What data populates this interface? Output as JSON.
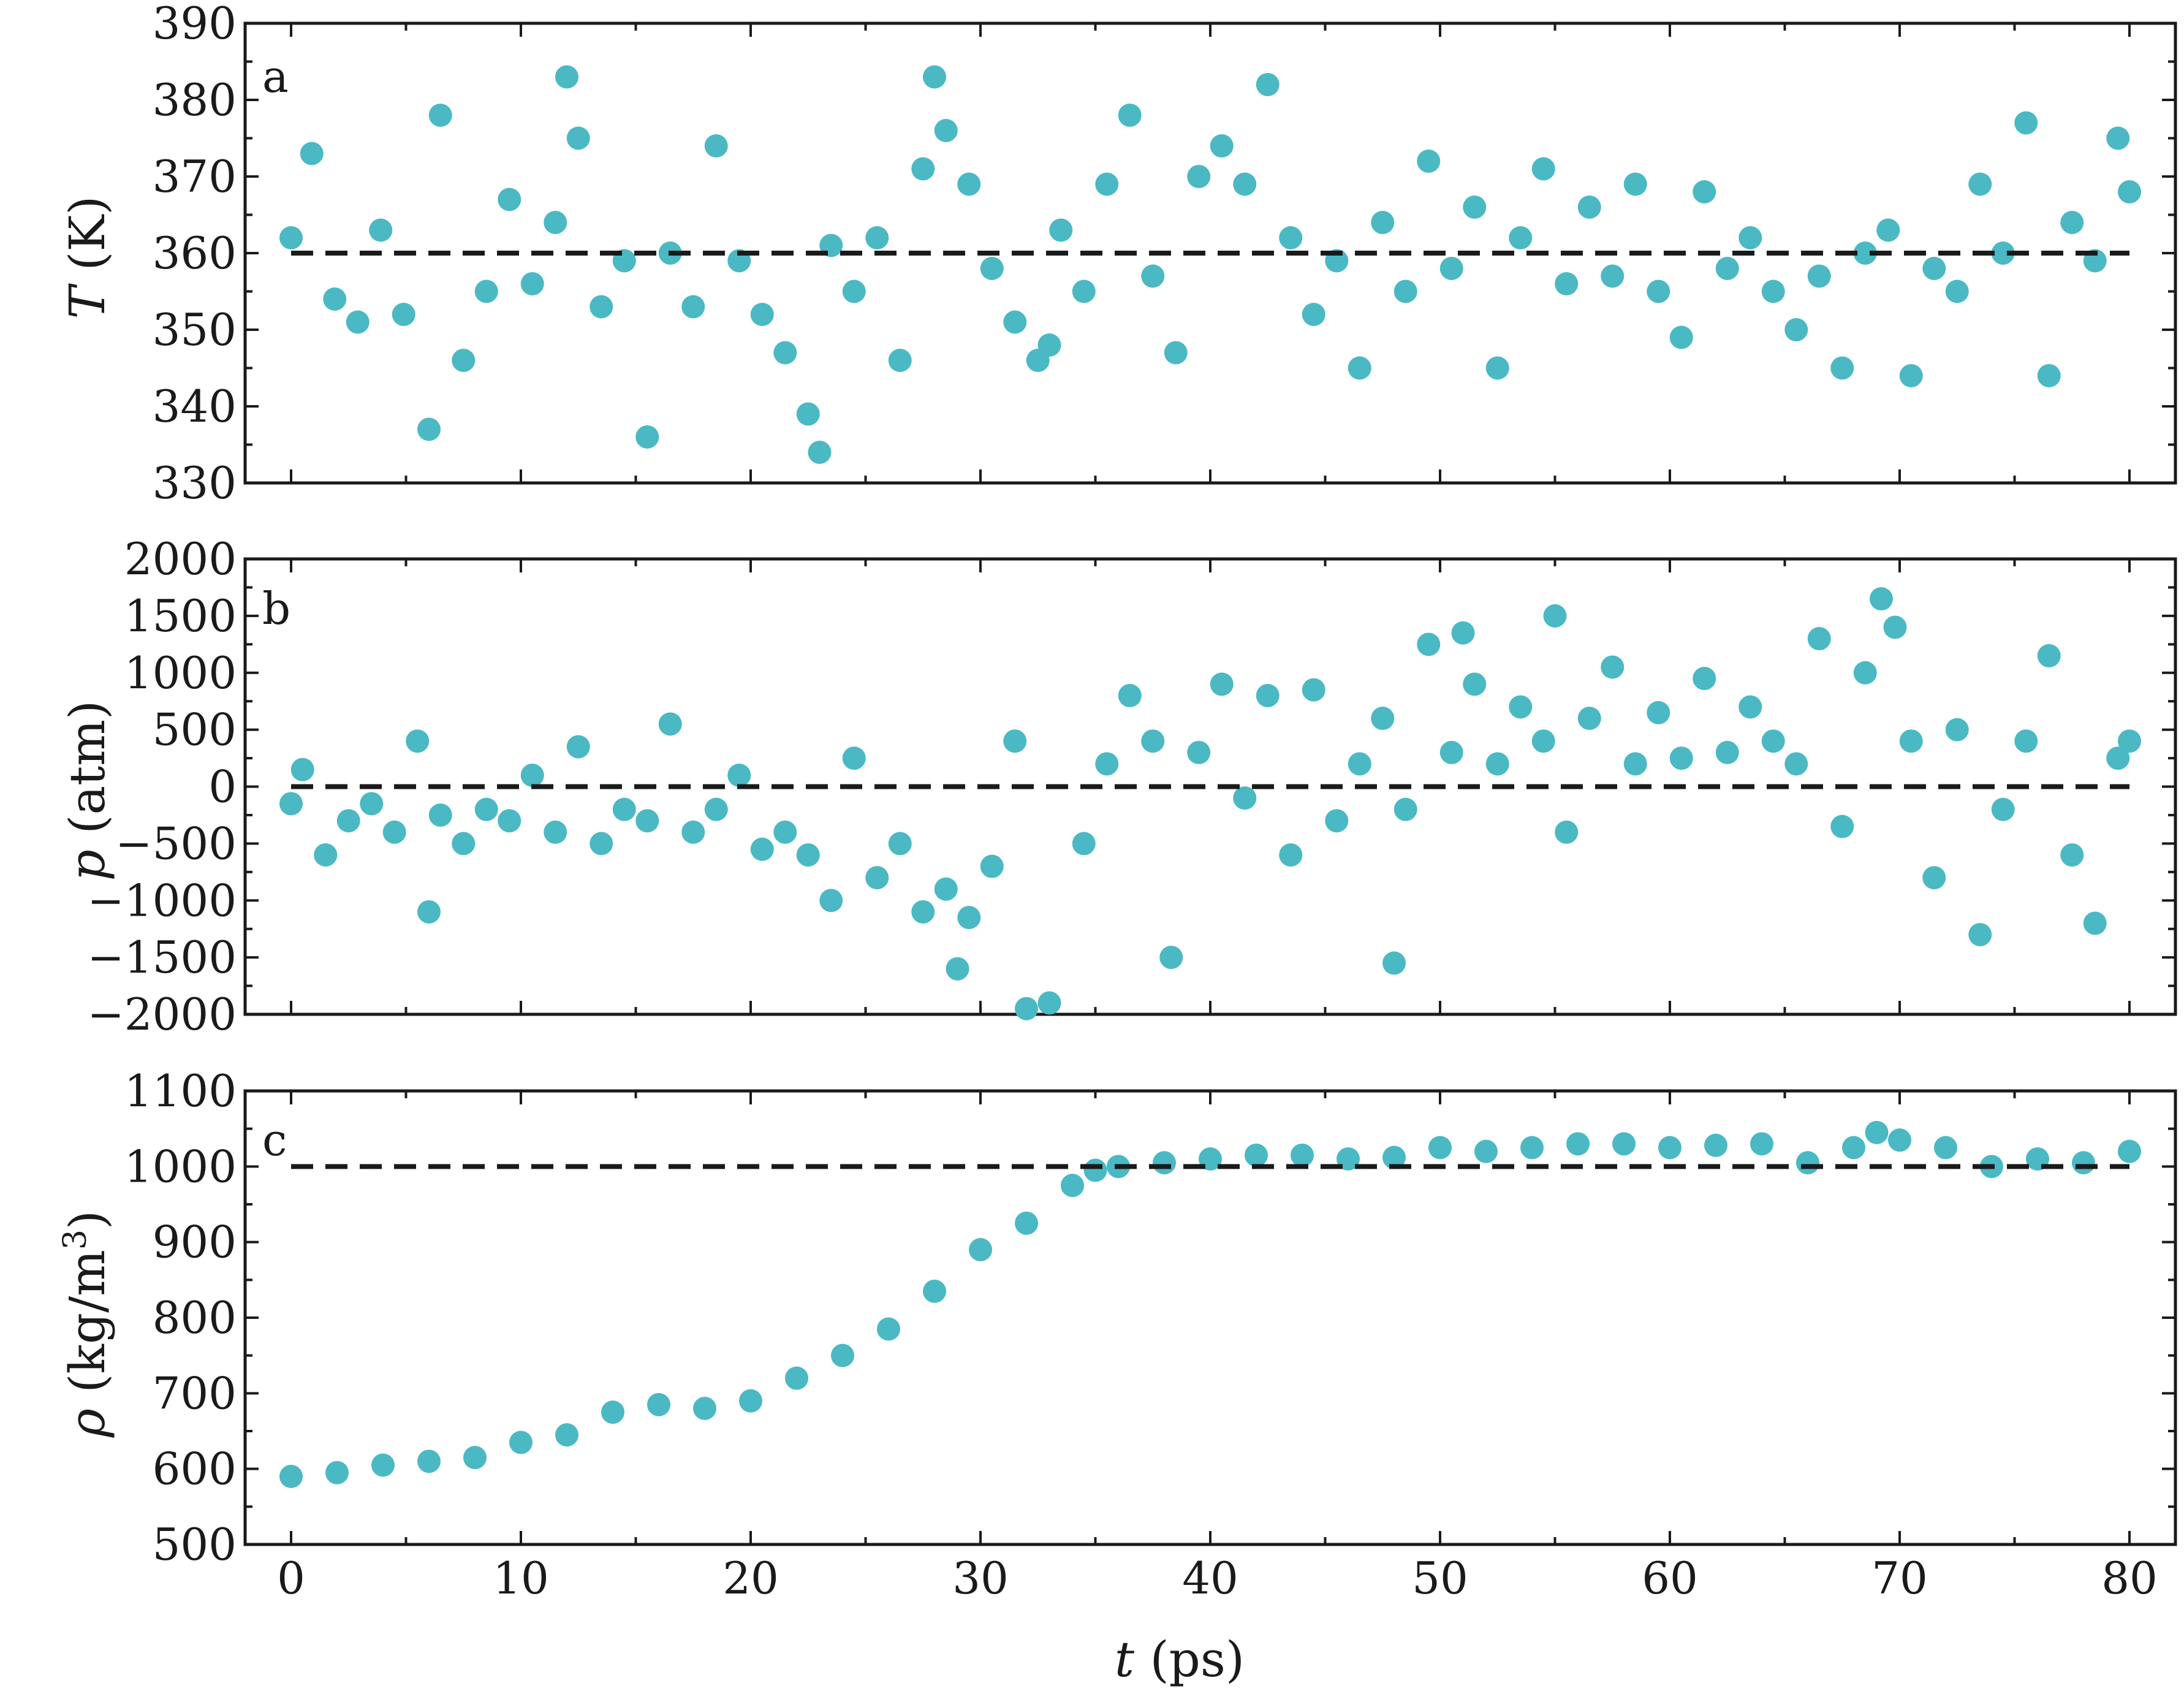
{
  "chart_data": [
    {
      "type": "scatter",
      "panel_label": "a",
      "ylabel_symbol": "T",
      "ylabel_unit": " (K)",
      "ylim": [
        330,
        390
      ],
      "yticks": [
        "330",
        "340",
        "350",
        "360",
        "370",
        "380",
        "390"
      ],
      "xlim": [
        -2,
        82
      ],
      "reference_line": 360,
      "marker_color": "#4ab9c3",
      "series": [
        {
          "x": [
            0.0,
            0.9,
            1.9,
            2.9,
            3.9,
            4.9,
            6.0,
            6.5,
            7.5,
            8.5,
            9.5,
            10.5,
            11.5,
            12.0,
            12.5,
            13.5,
            14.5,
            15.5,
            16.5,
            17.5,
            18.5,
            19.5,
            20.5,
            21.5,
            22.5,
            23.0,
            23.5,
            24.5,
            25.5,
            26.5,
            27.5,
            28.0,
            28.5,
            29.5,
            30.5,
            31.5,
            32.5,
            33.0,
            33.5,
            34.5,
            35.5,
            36.5,
            37.5,
            38.5,
            39.5,
            40.5,
            41.5,
            42.5,
            43.5,
            44.5,
            45.5,
            46.5,
            47.5,
            48.5,
            49.5,
            50.5,
            51.5,
            52.5,
            53.5,
            54.5,
            55.5,
            56.5,
            57.5,
            58.5,
            59.5,
            60.5,
            61.5,
            62.5,
            63.5,
            64.5,
            65.5,
            66.5,
            67.5,
            68.5,
            69.5,
            70.5,
            71.5,
            72.5,
            73.5,
            74.5,
            75.5,
            76.5,
            77.5,
            78.5,
            79.5,
            80.0
          ],
          "y": [
            362,
            373,
            354,
            351,
            363,
            352,
            337,
            378,
            346,
            355,
            367,
            356,
            364,
            383,
            375,
            353,
            359,
            336,
            360,
            353,
            374,
            359,
            352,
            347,
            339,
            334,
            361,
            355,
            362,
            346,
            371,
            383,
            376,
            369,
            358,
            351,
            346,
            348,
            363,
            355,
            369,
            378,
            357,
            347,
            370,
            374,
            369,
            382,
            362,
            352,
            359,
            345,
            364,
            355,
            372,
            358,
            366,
            345,
            362,
            371,
            356,
            366,
            357,
            369,
            355,
            349,
            368,
            358,
            362,
            355,
            350,
            357,
            345,
            360,
            363,
            344,
            358,
            355,
            369,
            360,
            377,
            344,
            364,
            359,
            375,
            368
          ]
        }
      ]
    },
    {
      "type": "scatter",
      "panel_label": "b",
      "ylabel_symbol": "p",
      "ylabel_unit": " (atm)",
      "ylim": [
        -2000,
        2000
      ],
      "yticks": [
        "−2000",
        "−1500",
        "−1000",
        "−500",
        "0",
        "500",
        "1000",
        "1500",
        "2000"
      ],
      "xlim": [
        -2,
        82
      ],
      "reference_line": 0,
      "marker_color": "#4ab9c3",
      "series": [
        {
          "x": [
            0.0,
            0.5,
            1.5,
            2.5,
            3.5,
            4.5,
            5.5,
            6.0,
            6.5,
            7.5,
            8.5,
            9.5,
            10.5,
            11.5,
            12.5,
            13.5,
            14.5,
            15.5,
            16.5,
            17.5,
            18.5,
            19.5,
            20.5,
            21.5,
            22.5,
            23.5,
            24.5,
            25.5,
            26.5,
            27.5,
            28.5,
            29.0,
            29.5,
            30.5,
            31.5,
            32.0,
            33.0,
            34.5,
            35.5,
            36.5,
            37.5,
            38.3,
            39.5,
            40.5,
            41.5,
            42.5,
            43.5,
            44.5,
            45.5,
            46.5,
            47.5,
            48.0,
            48.5,
            49.5,
            50.5,
            51.0,
            51.5,
            52.5,
            53.5,
            54.5,
            55.0,
            55.5,
            56.5,
            57.5,
            58.5,
            59.5,
            60.5,
            61.5,
            62.5,
            63.5,
            64.5,
            65.5,
            66.5,
            67.5,
            68.5,
            69.2,
            69.8,
            70.5,
            71.5,
            72.5,
            73.5,
            74.5,
            75.5,
            76.5,
            77.5,
            78.5,
            79.5,
            80.0
          ],
          "y": [
            -150,
            150,
            -600,
            -300,
            -150,
            -400,
            400,
            -1100,
            -250,
            -500,
            -200,
            -300,
            100,
            -400,
            350,
            -500,
            -200,
            -300,
            550,
            -400,
            -200,
            100,
            -550,
            -400,
            -600,
            -1000,
            250,
            -800,
            -500,
            -1100,
            -900,
            -1600,
            -1150,
            -700,
            400,
            -1950,
            -1900,
            -500,
            200,
            800,
            400,
            -1500,
            300,
            900,
            -100,
            800,
            -600,
            850,
            -300,
            200,
            600,
            -1550,
            -200,
            1250,
            300,
            1350,
            900,
            200,
            700,
            400,
            1500,
            -400,
            600,
            1050,
            200,
            650,
            250,
            950,
            300,
            700,
            400,
            200,
            1300,
            -350,
            1000,
            1650,
            1400,
            400,
            -800,
            500,
            -1300,
            -200,
            400,
            1150,
            -600,
            -1200,
            250,
            400
          ]
        }
      ]
    },
    {
      "type": "scatter",
      "panel_label": "c",
      "ylabel_symbol": "ρ",
      "ylabel_unit": " (kg/m",
      "ylabel_sup": "3",
      "ylabel_close": ")",
      "ylim": [
        500,
        1100
      ],
      "yticks": [
        "500",
        "600",
        "700",
        "800",
        "900",
        "1000",
        "1100"
      ],
      "xlim": [
        -2,
        82
      ],
      "reference_line": 1000,
      "marker_color": "#4ab9c3",
      "series": [
        {
          "x": [
            0,
            2,
            4,
            6,
            8,
            10,
            12,
            14,
            16,
            18,
            20,
            22,
            24,
            26,
            28,
            30,
            32,
            34,
            35,
            36,
            38,
            40,
            42,
            44,
            46,
            48,
            50,
            52,
            54,
            56,
            58,
            60,
            62,
            64,
            66,
            68,
            69,
            70,
            72,
            74,
            76,
            78,
            80
          ],
          "y": [
            590,
            595,
            605,
            610,
            615,
            635,
            645,
            675,
            685,
            680,
            690,
            720,
            750,
            785,
            835,
            890,
            925,
            975,
            995,
            1000,
            1005,
            1010,
            1015,
            1015,
            1010,
            1012,
            1025,
            1020,
            1025,
            1030,
            1030,
            1025,
            1028,
            1030,
            1005,
            1025,
            1045,
            1035,
            1025,
            1000,
            1010,
            1005,
            1020
          ]
        }
      ]
    }
  ],
  "x_axis": {
    "label_symbol": "t",
    "label_unit": " (ps)",
    "ticks": [
      "0",
      "10",
      "20",
      "30",
      "40",
      "50",
      "60",
      "70",
      "80"
    ]
  }
}
